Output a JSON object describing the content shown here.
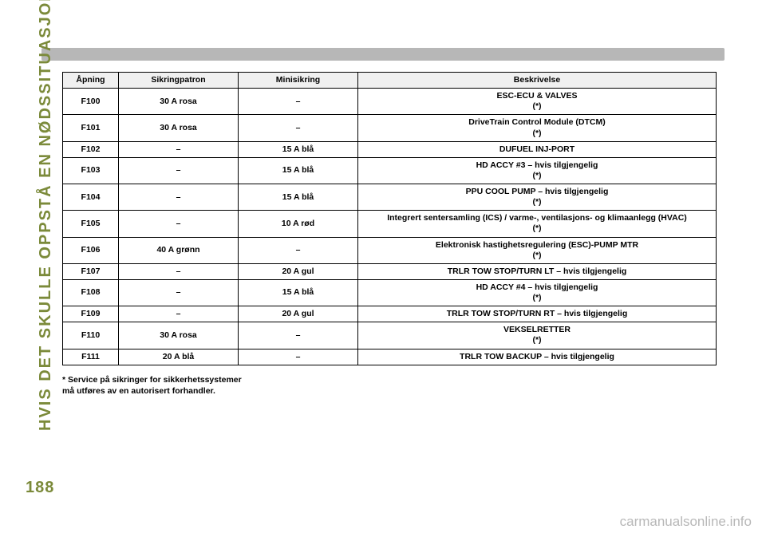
{
  "side_label": "HVIS DET SKULLE OPPSTÅ EN NØDSSITUASJON",
  "page_number": "188",
  "footer_link": "carmanualsonline.info",
  "table": {
    "headers": [
      "Åpning",
      "Sikringpatron",
      "Minisikring",
      "Beskrivelse"
    ],
    "rows": [
      {
        "c1": "F100",
        "c2": "30 A rosa",
        "c3": "–",
        "c4a": "ESC-ECU & VALVES",
        "c4b": "(*)"
      },
      {
        "c1": "F101",
        "c2": "30 A rosa",
        "c3": "–",
        "c4a": "DriveTrain Control Module (DTCM)",
        "c4b": "(*)"
      },
      {
        "c1": "F102",
        "c2": "–",
        "c3": "15 A blå",
        "c4a": "DUFUEL INJ-PORT",
        "c4b": ""
      },
      {
        "c1": "F103",
        "c2": "–",
        "c3": "15 A blå",
        "c4a": "HD ACCY #3 – hvis tilgjengelig",
        "c4b": "(*)"
      },
      {
        "c1": "F104",
        "c2": "–",
        "c3": "15 A blå",
        "c4a": "PPU COOL PUMP – hvis tilgjengelig",
        "c4b": "(*)"
      },
      {
        "c1": "F105",
        "c2": "–",
        "c3": "10 A rød",
        "c4a": "Integrert sentersamling (ICS) / varme-, ventilasjons- og klimaanlegg (HVAC)",
        "c4b": "(*)"
      },
      {
        "c1": "F106",
        "c2": "40 A grønn",
        "c3": "–",
        "c4a": "Elektronisk hastighetsregulering (ESC)-PUMP MTR",
        "c4b": "(*)"
      },
      {
        "c1": "F107",
        "c2": "–",
        "c3": "20 A gul",
        "c4a": "TRLR TOW STOP/TURN LT – hvis tilgjengelig",
        "c4b": ""
      },
      {
        "c1": "F108",
        "c2": "–",
        "c3": "15 A blå",
        "c4a": "HD ACCY #4 – hvis tilgjengelig",
        "c4b": "(*)"
      },
      {
        "c1": "F109",
        "c2": "–",
        "c3": "20 A gul",
        "c4a": "TRLR TOW STOP/TURN RT – hvis tilgjengelig",
        "c4b": ""
      },
      {
        "c1": "F110",
        "c2": "30 A rosa",
        "c3": "–",
        "c4a": "VEKSELRETTER",
        "c4b": "(*)"
      },
      {
        "c1": "F111",
        "c2": "20 A blå",
        "c3": "–",
        "c4a": "TRLR TOW BACKUP – hvis tilgjengelig",
        "c4b": ""
      }
    ]
  },
  "footnote1": "* Service på sikringer for sikkerhetssystemer",
  "footnote2": "må utføres av en autorisert forhandler."
}
